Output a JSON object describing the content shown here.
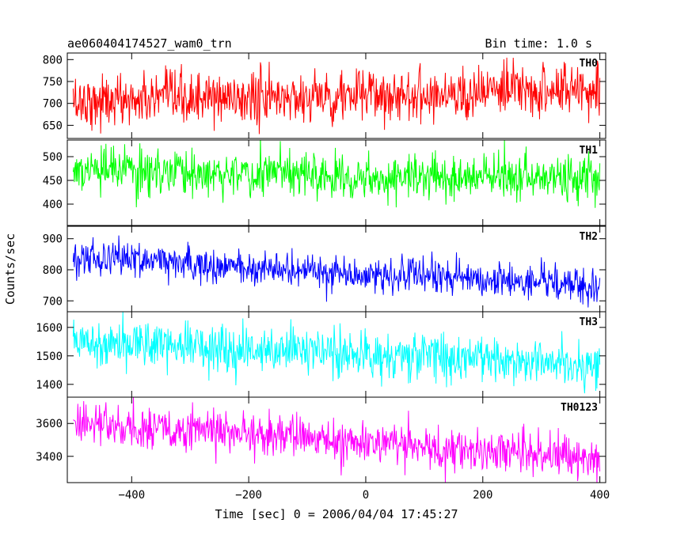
{
  "header": {
    "title": "ae060404174527_wam0_trn",
    "bin_time": "Bin time: 1.0 s"
  },
  "axes": {
    "xlabel": "Time [sec] 0 = 2006/04/04 17:45:27",
    "ylabel": "Counts/sec"
  },
  "chart_data": {
    "type": "line",
    "title": "ae060404174527_wam0_trn",
    "xlabel": "Time [sec] 0 = 2006/04/04 17:45:27",
    "ylabel": "Counts/sec",
    "xlim": [
      -510,
      410
    ],
    "x_start": -500,
    "x_end": 400,
    "bin_seconds": 1.0,
    "x_ticks": [
      -400,
      -200,
      0,
      200,
      400
    ],
    "x_tick_labels": [
      "−400",
      "−200",
      "0",
      "200",
      "400"
    ],
    "grid": false,
    "series": [
      {
        "name": "TH0",
        "color": "#ff0000",
        "ylim": [
          620,
          815
        ],
        "y_ticks": [
          650,
          700,
          750,
          800
        ],
        "y_tick_labels": [
          "650",
          "700",
          "750",
          "800"
        ],
        "trend": [
          [
            -500,
            705
          ],
          [
            -200,
            712
          ],
          [
            0,
            718
          ],
          [
            200,
            725
          ],
          [
            400,
            735
          ]
        ],
        "noise_sd": 30
      },
      {
        "name": "TH1",
        "color": "#00ff00",
        "ylim": [
          355,
          535
        ],
        "y_ticks": [
          400,
          450,
          500
        ],
        "y_tick_labels": [
          "400",
          "450",
          "500"
        ],
        "trend": [
          [
            -500,
            470
          ],
          [
            -200,
            465
          ],
          [
            0,
            460
          ],
          [
            200,
            455
          ],
          [
            400,
            455
          ]
        ],
        "noise_sd": 24
      },
      {
        "name": "TH2",
        "color": "#0000ff",
        "ylim": [
          665,
          940
        ],
        "y_ticks": [
          700,
          800,
          900
        ],
        "y_tick_labels": [
          "700",
          "800",
          "900"
        ],
        "trend": [
          [
            -500,
            845
          ],
          [
            -300,
            820
          ],
          [
            -100,
            795
          ],
          [
            0,
            785
          ],
          [
            200,
            770
          ],
          [
            400,
            745
          ]
        ],
        "noise_sd": 28
      },
      {
        "name": "TH3",
        "color": "#00ffff",
        "ylim": [
          1355,
          1655
        ],
        "y_ticks": [
          1400,
          1500,
          1600
        ],
        "y_tick_labels": [
          "1400",
          "1500",
          "1600"
        ],
        "trend": [
          [
            -500,
            1555
          ],
          [
            -300,
            1540
          ],
          [
            -100,
            1515
          ],
          [
            0,
            1505
          ],
          [
            200,
            1490
          ],
          [
            400,
            1470
          ]
        ],
        "noise_sd": 42
      },
      {
        "name": "TH0123",
        "color": "#ff00ff",
        "ylim": [
          3240,
          3760
        ],
        "y_ticks": [
          3400,
          3600
        ],
        "y_tick_labels": [
          "3400",
          "3600"
        ],
        "trend": [
          [
            -500,
            3600
          ],
          [
            -300,
            3560
          ],
          [
            -100,
            3510
          ],
          [
            0,
            3480
          ],
          [
            200,
            3440
          ],
          [
            400,
            3390
          ]
        ],
        "noise_sd": 65
      }
    ]
  }
}
